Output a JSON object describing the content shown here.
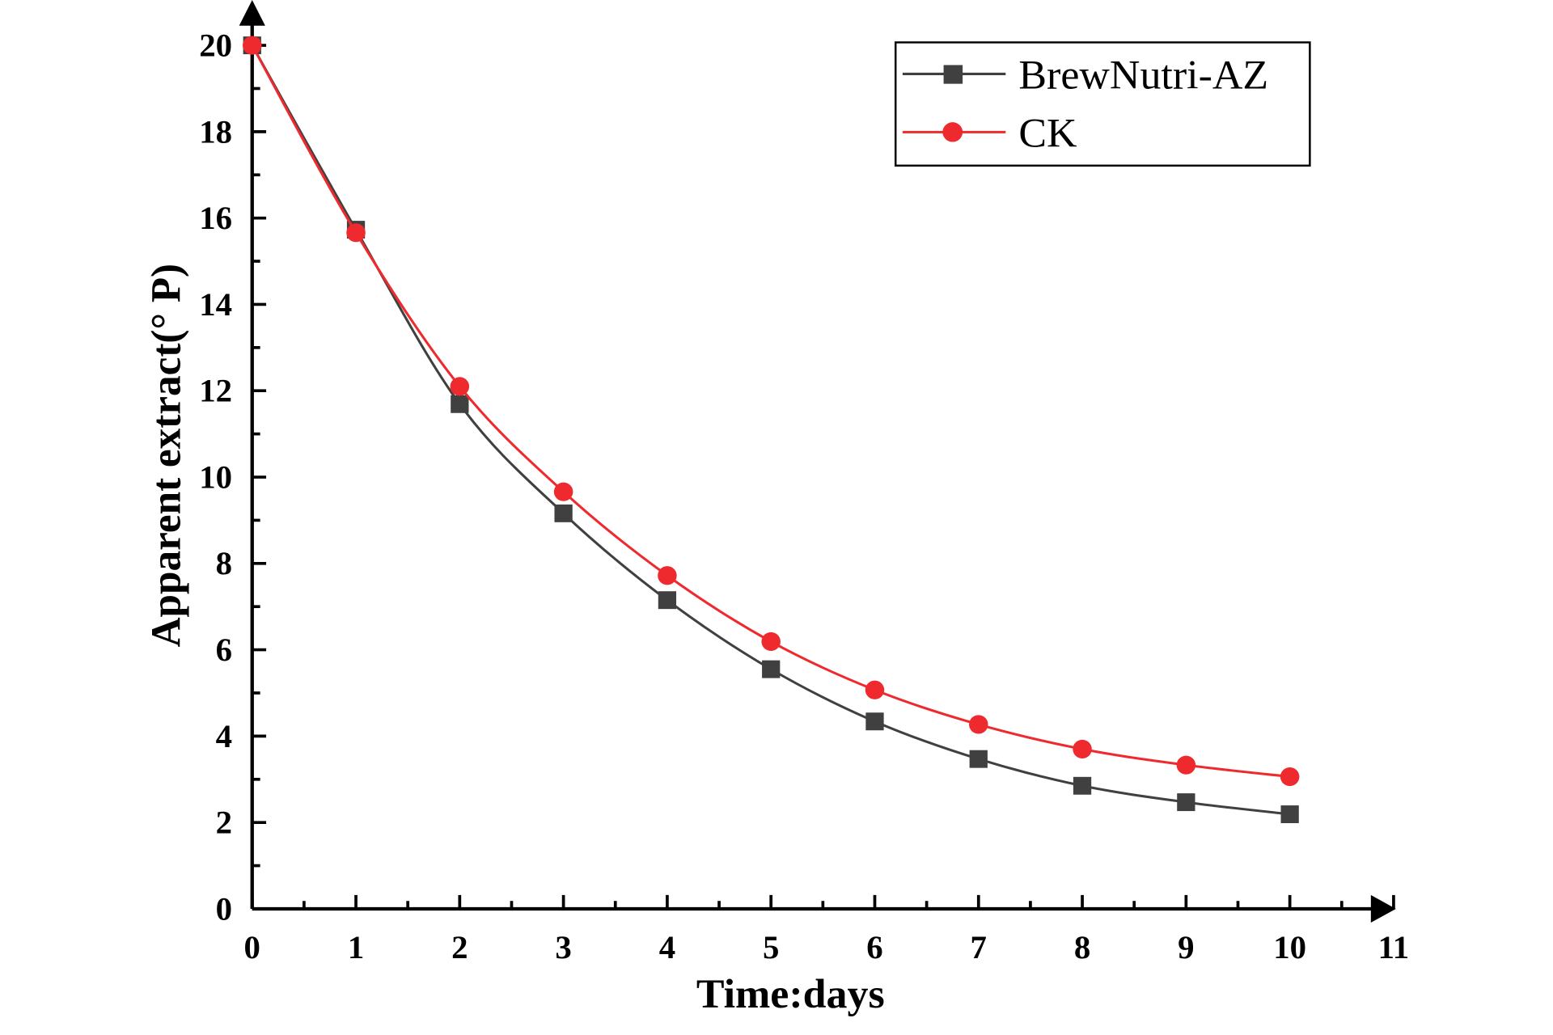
{
  "chart_data": {
    "type": "line",
    "title": "",
    "xlabel": "Time:days",
    "ylabel": "Apparent extract(° P)",
    "xlim": [
      0,
      11
    ],
    "ylim": [
      0,
      20
    ],
    "x_ticks": [
      "0",
      "1",
      "2",
      "3",
      "4",
      "5",
      "6",
      "7",
      "8",
      "9",
      "10",
      "11"
    ],
    "y_ticks": [
      "0",
      "2",
      "4",
      "6",
      "8",
      "10",
      "12",
      "14",
      "16",
      "18",
      "20"
    ],
    "grid": false,
    "legend_position": "top-right",
    "x": [
      0,
      1,
      2,
      3,
      4,
      5,
      6,
      7,
      8,
      9,
      10
    ],
    "series": [
      {
        "name": "BrewNutri-AZ",
        "color": "#404040",
        "marker": "square",
        "values": [
          20.0,
          15.73,
          11.69,
          9.16,
          7.15,
          5.55,
          4.34,
          3.47,
          2.85,
          2.47,
          2.19
        ]
      },
      {
        "name": "CK",
        "color": "#ee2a2f",
        "marker": "circle",
        "values": [
          20.0,
          15.66,
          12.1,
          9.66,
          7.72,
          6.19,
          5.07,
          4.27,
          3.7,
          3.33,
          3.06
        ]
      }
    ]
  }
}
